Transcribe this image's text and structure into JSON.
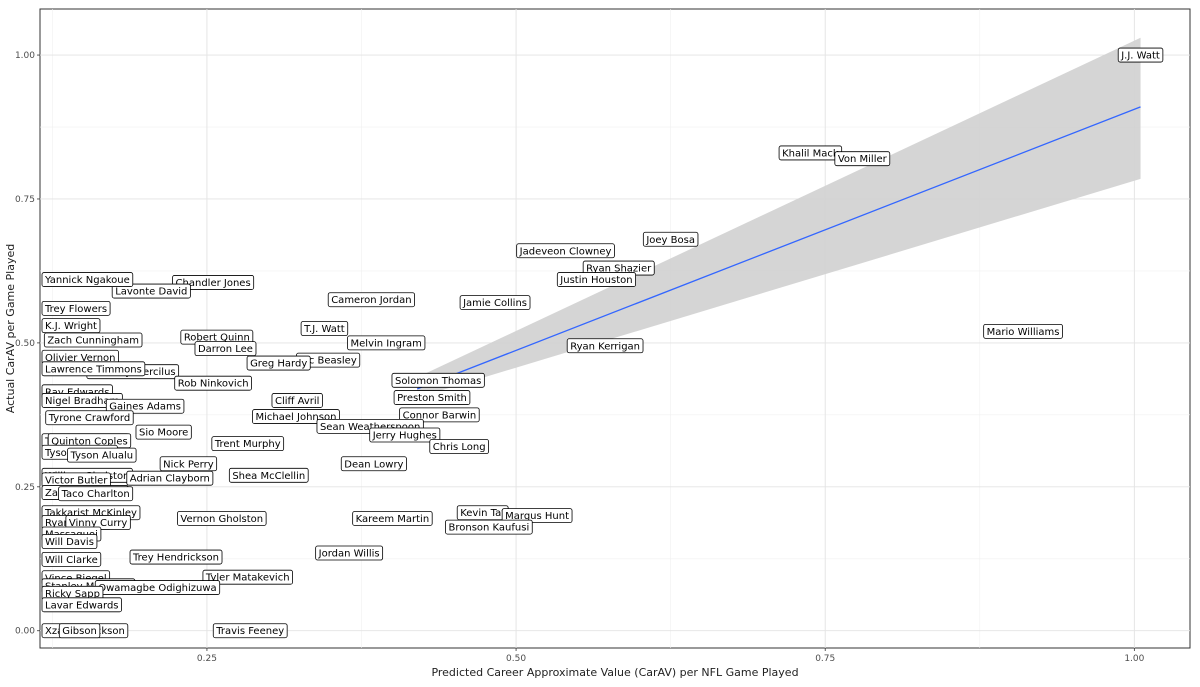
{
  "chart_data": {
    "type": "scatter",
    "title": "",
    "xlabel": "Predicted Career Approximate Value (CarAV) per NFL Game Played",
    "ylabel": "Actual CarAV per Game Played",
    "xlim": [
      0.115,
      1.045
    ],
    "ylim": [
      -0.03,
      1.08
    ],
    "x_ticks": [
      0.25,
      0.5,
      0.75,
      1.0
    ],
    "x_tick_labels": [
      "0.25",
      "0.50",
      "0.75",
      "1.00"
    ],
    "y_ticks": [
      0.0,
      0.25,
      0.5,
      0.75,
      1.0
    ],
    "y_tick_labels": [
      "0.00",
      "0.25",
      "0.50",
      "0.75",
      "1.00"
    ],
    "grid": true,
    "fit_line": {
      "color": "#3366ff",
      "x": [
        0.42,
        1.005
      ],
      "y": [
        0.42,
        0.91
      ],
      "band_lower": [
        0.405,
        0.785
      ],
      "band_upper": [
        0.44,
        1.03
      ],
      "band_color": "#d0d0d0"
    },
    "points": [
      {
        "label": "J.J. Watt",
        "x": 1.005,
        "y": 1.0
      },
      {
        "label": "Khalil Mack",
        "x": 0.738,
        "y": 0.83
      },
      {
        "label": "Von Miller",
        "x": 0.78,
        "y": 0.82
      },
      {
        "label": "Mario Williams",
        "x": 0.91,
        "y": 0.52
      },
      {
        "label": "Joey Bosa",
        "x": 0.625,
        "y": 0.68
      },
      {
        "label": "Jadeveon Clowney",
        "x": 0.54,
        "y": 0.66
      },
      {
        "label": "Ryan Shazier",
        "x": 0.583,
        "y": 0.63
      },
      {
        "label": "Justin Houston",
        "x": 0.565,
        "y": 0.61
      },
      {
        "label": "Cameron Jordan",
        "x": 0.383,
        "y": 0.575
      },
      {
        "label": "Jamie Collins",
        "x": 0.483,
        "y": 0.57
      },
      {
        "label": "Ryan Kerrigan",
        "x": 0.572,
        "y": 0.495
      },
      {
        "label": "Chandler Jones",
        "x": 0.255,
        "y": 0.605
      },
      {
        "label": "Lavonte David",
        "x": 0.205,
        "y": 0.59
      },
      {
        "label": "Yannick Ngakoue",
        "x": 0.07,
        "y": 0.61
      },
      {
        "label": "Trey Flowers",
        "x": 0.108,
        "y": 0.56
      },
      {
        "label": "K.J. Wright",
        "x": 0.06,
        "y": 0.53
      },
      {
        "label": "Zach Cunningham",
        "x": 0.158,
        "y": 0.505
      },
      {
        "label": "Robert Quinn",
        "x": 0.258,
        "y": 0.51
      },
      {
        "label": "T.J. Watt",
        "x": 0.345,
        "y": 0.525
      },
      {
        "label": "Melvin Ingram",
        "x": 0.395,
        "y": 0.5
      },
      {
        "label": "Darron Lee",
        "x": 0.265,
        "y": 0.49
      },
      {
        "label": "Olivier Vernon",
        "x": 0.06,
        "y": 0.475
      },
      {
        "label": "Vic Beasley",
        "x": 0.348,
        "y": 0.47
      },
      {
        "label": "Greg Hardy",
        "x": 0.308,
        "y": 0.465
      },
      {
        "label": "Whitney Mercilus",
        "x": 0.19,
        "y": 0.45
      },
      {
        "label": "Lawrence Timmons",
        "x": 0.105,
        "y": 0.455
      },
      {
        "label": "Rob Ninkovich",
        "x": 0.255,
        "y": 0.43
      },
      {
        "label": "Solomon Thomas",
        "x": 0.437,
        "y": 0.435
      },
      {
        "label": "Preston Smith",
        "x": 0.432,
        "y": 0.405
      },
      {
        "label": "Ray Edwards",
        "x": 0.08,
        "y": 0.415
      },
      {
        "label": "Nigel Bradham",
        "x": 0.08,
        "y": 0.4
      },
      {
        "label": "Gaines Adams",
        "x": 0.2,
        "y": 0.39
      },
      {
        "label": "Cliff Avril",
        "x": 0.323,
        "y": 0.4
      },
      {
        "label": "Connor Barwin",
        "x": 0.438,
        "y": 0.375
      },
      {
        "label": "Michael Johnson",
        "x": 0.322,
        "y": 0.372
      },
      {
        "label": "Tyrone Crawford",
        "x": 0.155,
        "y": 0.37
      },
      {
        "label": "Sean Weatherspoon",
        "x": 0.382,
        "y": 0.355
      },
      {
        "label": "Jerry Hughes",
        "x": 0.41,
        "y": 0.34
      },
      {
        "label": "Sio Moore",
        "x": 0.215,
        "y": 0.345
      },
      {
        "label": "Tahir Whitehead",
        "x": 0.05,
        "y": 0.33
      },
      {
        "label": "Quinton Coples",
        "x": 0.155,
        "y": 0.33
      },
      {
        "label": "Trent Murphy",
        "x": 0.283,
        "y": 0.325
      },
      {
        "label": "Chris Long",
        "x": 0.454,
        "y": 0.32
      },
      {
        "label": "Tyson Jackson",
        "x": 0.06,
        "y": 0.31
      },
      {
        "label": "Tyson Alualu",
        "x": 0.165,
        "y": 0.305
      },
      {
        "label": "Nick Perry",
        "x": 0.235,
        "y": 0.29
      },
      {
        "label": "Dean Lowry",
        "x": 0.385,
        "y": 0.29
      },
      {
        "label": "Shea McClellin",
        "x": 0.3,
        "y": 0.27
      },
      {
        "label": "William Gholston",
        "x": 0.122,
        "y": 0.27
      },
      {
        "label": "Victor Butler",
        "x": 0.06,
        "y": 0.262
      },
      {
        "label": "Adrian Clayborn",
        "x": 0.22,
        "y": 0.265
      },
      {
        "label": "Za'Darius Smith",
        "x": 0.048,
        "y": 0.24
      },
      {
        "label": "Taco Charlton",
        "x": 0.16,
        "y": 0.238
      },
      {
        "label": "Takkarist McKinley",
        "x": 0.085,
        "y": 0.205
      },
      {
        "label": "Kevin Tat",
        "x": 0.473,
        "y": 0.205
      },
      {
        "label": "Margus Hunt",
        "x": 0.517,
        "y": 0.2
      },
      {
        "label": "Kareem Martin",
        "x": 0.4,
        "y": 0.195
      },
      {
        "label": "Bronson Kaufusi",
        "x": 0.478,
        "y": 0.18
      },
      {
        "label": "Vernon Gholston",
        "x": 0.262,
        "y": 0.195
      },
      {
        "label": "Ryan Russell",
        "x": 0.092,
        "y": 0.188
      },
      {
        "label": "Vinny Curry",
        "x": 0.162,
        "y": 0.188
      },
      {
        "label": "Massaquoi",
        "x": 0.135,
        "y": 0.168
      },
      {
        "label": "Will Davis",
        "x": 0.06,
        "y": 0.155
      },
      {
        "label": "Jordan Willis",
        "x": 0.365,
        "y": 0.135
      },
      {
        "label": "Trey Hendrickson",
        "x": 0.225,
        "y": 0.128
      },
      {
        "label": "Will Clarke",
        "x": 0.135,
        "y": 0.124
      },
      {
        "label": "Tyler Matakevich",
        "x": 0.283,
        "y": 0.093
      },
      {
        "label": "Vince Biegel",
        "x": 0.1,
        "y": 0.092
      },
      {
        "label": "Stanley McClover",
        "x": 0.05,
        "y": 0.078
      },
      {
        "label": "Owamagbe Odighizuwa",
        "x": 0.21,
        "y": 0.075
      },
      {
        "label": "Ricky Sapp",
        "x": 0.1,
        "y": 0.065
      },
      {
        "label": "Lavar Edwards",
        "x": 0.138,
        "y": 0.045
      },
      {
        "label": "Xzavier Dickson",
        "x": 0.065,
        "y": 0.0
      },
      {
        "label": "Gibson",
        "x": 0.147,
        "y": 0.0
      },
      {
        "label": "Travis Feeney",
        "x": 0.285,
        "y": 0.0
      }
    ]
  }
}
